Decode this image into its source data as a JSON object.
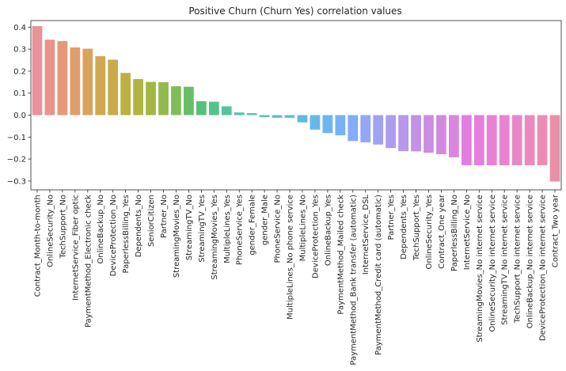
{
  "chart_data": {
    "type": "bar",
    "title": "Positive Churn (Churn Yes) correlation values",
    "xlabel": "",
    "ylabel": "",
    "ylim": [
      -0.34,
      0.43
    ],
    "yticks": [
      -0.3,
      -0.2,
      -0.1,
      0.0,
      0.1,
      0.2,
      0.3,
      0.4
    ],
    "ytick_labels": [
      "−0.3",
      "−0.2",
      "−0.1",
      "0.0",
      "0.1",
      "0.2",
      "0.3",
      "0.4"
    ],
    "grid": false,
    "legend": "none",
    "categories": [
      "Contract_Month-to-month",
      "OnlineSecurity_No",
      "TechSupport_No",
      "InternetService_Fiber optic",
      "PaymentMethod_Electronic check",
      "OnlineBackup_No",
      "DeviceProtection_No",
      "PaperlessBilling_Yes",
      "Dependents_No",
      "SeniorCitizen",
      "Partner_No",
      "StreamingMovies_No",
      "StreamingTV_No",
      "StreamingTV_Yes",
      "StreamingMovies_Yes",
      "MultipleLines_Yes",
      "PhoneService_Yes",
      "gender_Female",
      "gender_Male",
      "PhoneService_No",
      "MultipleLines_No phone service",
      "MultipleLines_No",
      "DeviceProtection_Yes",
      "OnlineBackup_Yes",
      "PaymentMethod_Mailed check",
      "PaymentMethod_Bank transfer (automatic)",
      "InternetService_DSL",
      "PaymentMethod_Credit card (automatic)",
      "Partner_Yes",
      "Dependents_Yes",
      "TechSupport_Yes",
      "OnlineSecurity_Yes",
      "Contract_One year",
      "PaperlessBilling_No",
      "InternetService_No",
      "StreamingMovies_No internet service",
      "OnlineSecurity_No internet service",
      "StreamingTV_No internet service",
      "TechSupport_No internet service",
      "OnlineBackup_No internet service",
      "DeviceProtection_No internet service",
      "Contract_Two year"
    ],
    "values": [
      0.405,
      0.343,
      0.337,
      0.308,
      0.302,
      0.268,
      0.252,
      0.192,
      0.164,
      0.151,
      0.15,
      0.131,
      0.129,
      0.063,
      0.061,
      0.04,
      0.012,
      0.009,
      -0.009,
      -0.012,
      -0.012,
      -0.033,
      -0.066,
      -0.082,
      -0.092,
      -0.118,
      -0.124,
      -0.134,
      -0.15,
      -0.164,
      -0.165,
      -0.171,
      -0.178,
      -0.192,
      -0.228,
      -0.228,
      -0.228,
      -0.228,
      -0.228,
      -0.228,
      -0.228,
      -0.302
    ],
    "colors": [
      "#e8929a",
      "#e7958a",
      "#e49a7a",
      "#df9e6c",
      "#d9a25f",
      "#d1a752",
      "#c8ab4a",
      "#bdb043",
      "#b1b443",
      "#a3b745",
      "#93ba4d",
      "#80bd58",
      "#6abf66",
      "#58c07a",
      "#55c18e",
      "#56c2a0",
      "#57c1ae",
      "#58c1b8",
      "#59c0c1",
      "#5abfca",
      "#5cbdd4",
      "#5fbbde",
      "#65b9e8",
      "#6db5f1",
      "#78b1f6",
      "#86acf7",
      "#94a7f5",
      "#a1a2f1",
      "#ad9ded",
      "#b798e9",
      "#c193e6",
      "#ca8ee3",
      "#d28ae1",
      "#da86df",
      "#e27edf",
      "#e67edd",
      "#e880d6",
      "#e983cf",
      "#e987c6",
      "#ea8abc",
      "#ea8db2",
      "#e990a8"
    ]
  }
}
